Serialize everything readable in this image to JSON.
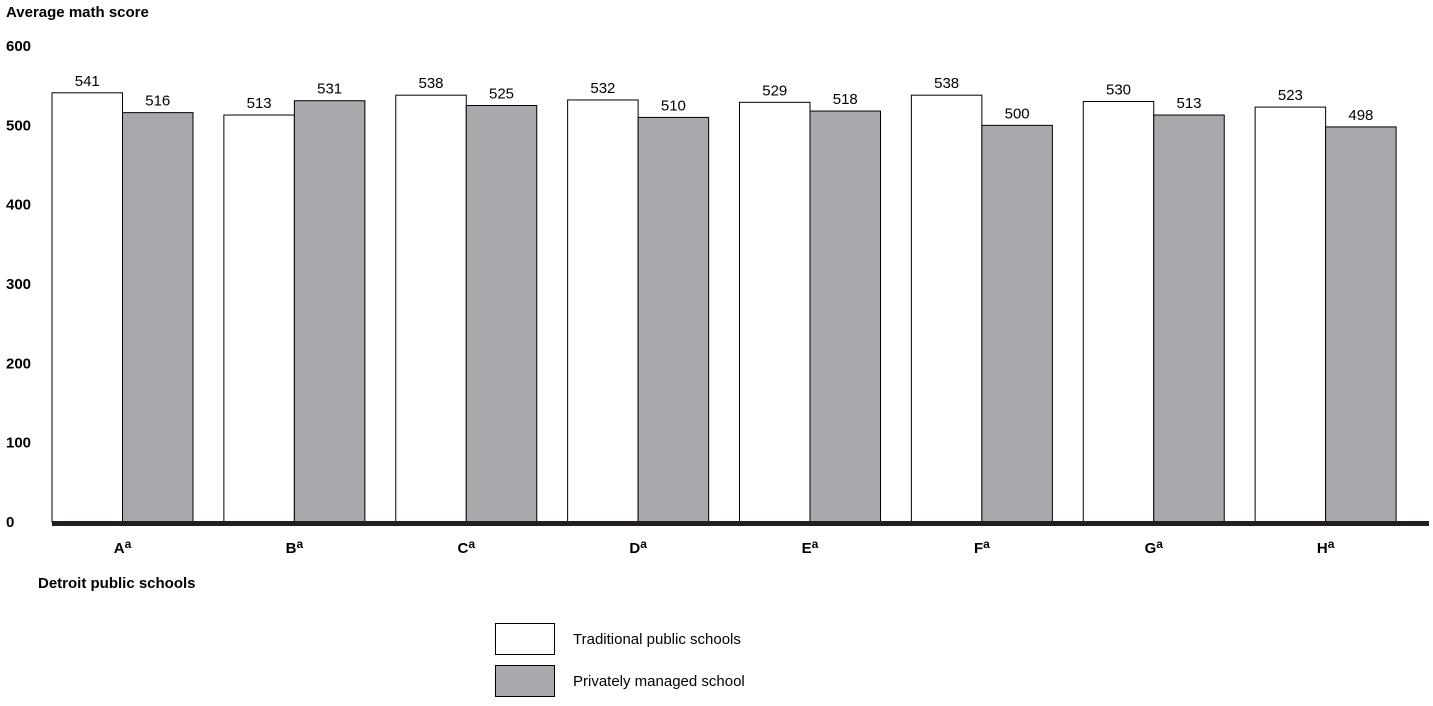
{
  "chart_data": {
    "type": "bar",
    "ylabel": "Average math score",
    "xlabel": "Detroit public schools",
    "ylim": [
      0,
      600
    ],
    "yticks": [
      0,
      100,
      200,
      300,
      400,
      500,
      600
    ],
    "categories": [
      "A",
      "B",
      "C",
      "D",
      "E",
      "F",
      "G",
      "H"
    ],
    "category_superscript": "a",
    "series": [
      {
        "name": "Traditional public schools",
        "color": "#ffffff",
        "values": [
          541,
          513,
          538,
          532,
          529,
          538,
          530,
          523
        ]
      },
      {
        "name": "Privately managed school",
        "color": "#a7a9ac",
        "values": [
          516,
          531,
          525,
          510,
          518,
          500,
          513,
          498
        ]
      }
    ],
    "legend_position": "bottom-center",
    "grid": false
  }
}
